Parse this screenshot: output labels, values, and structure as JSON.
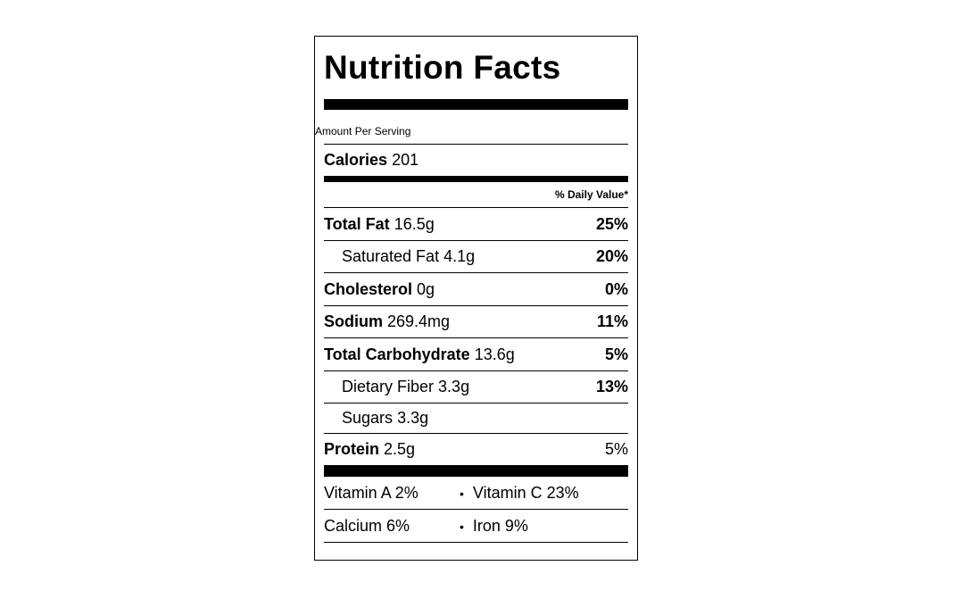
{
  "title": "Nutrition Facts",
  "serving_label": "Amount Per Serving",
  "calories": {
    "label": "Calories",
    "value": 201
  },
  "daily_value_header": "% Daily Value*",
  "nutrients": [
    {
      "name": "Total Fat",
      "amount": "16.5g",
      "daily_value": "25%"
    },
    {
      "name": "Saturated Fat",
      "amount": "4.1g",
      "daily_value": "20%"
    },
    {
      "name": "Cholesterol",
      "amount": "0g",
      "daily_value": "0%"
    },
    {
      "name": "Sodium",
      "amount": "269.4mg",
      "daily_value": "11%"
    },
    {
      "name": "Total Carbohydrate",
      "amount": "13.6g",
      "daily_value": "5%"
    },
    {
      "name": "Dietary Fiber",
      "amount": "3.3g",
      "daily_value": "13%"
    },
    {
      "name": "Sugars",
      "amount": "3.3g"
    },
    {
      "name": "Protein",
      "amount": "2.5g",
      "daily_value": "5%"
    }
  ],
  "vitamins": [
    [
      "Vitamin A 2%",
      "Vitamin C 23%"
    ],
    [
      "Calcium 6%",
      "Iron 9%"
    ]
  ]
}
